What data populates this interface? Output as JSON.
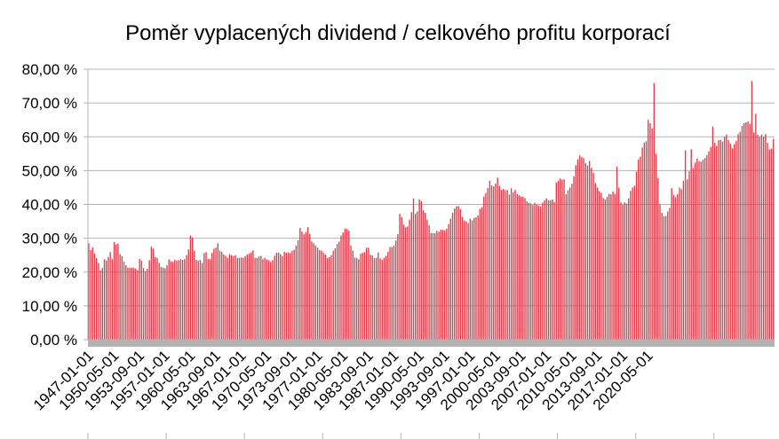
{
  "chart_data": {
    "type": "bar",
    "title": "Poměr vyplacených dividend / celkového profitu korporací",
    "xlabel": "",
    "ylabel": "",
    "ylim": [
      0,
      80
    ],
    "y_ticks": [
      "0,00 %",
      "10,00 %",
      "20,00 %",
      "30,00 %",
      "40,00 %",
      "50,00 %",
      "60,00 %",
      "70,00 %",
      "80,00 %"
    ],
    "y_tick_values": [
      0,
      10,
      20,
      30,
      40,
      50,
      60,
      70,
      80
    ],
    "x_ticks": [
      "1947-01-01",
      "1950-05-01",
      "1953-09-01",
      "1957-01-01",
      "1960-05-01",
      "1963-09-01",
      "1967-01-01",
      "1970-05-01",
      "1973-09-01",
      "1977-01-01",
      "1980-05-01",
      "1983-09-01",
      "1987-01-01",
      "1990-05-01",
      "1993-09-01",
      "1997-01-01",
      "2000-05-01",
      "2003-09-01",
      "2007-01-01",
      "2010-05-01",
      "2013-09-01",
      "2017-01-01",
      "2020-05-01"
    ],
    "grid": true,
    "legend": "none",
    "bar_color": "#e03c4a",
    "floor_color": "#b3b3b3",
    "x_start": "1947-01-01",
    "x_interval": "quarterly",
    "series": [
      {
        "values": [
          28.5,
          26.5,
          27.3,
          25.5,
          24.1,
          22.6,
          20.5,
          21.2,
          23.8,
          23.4,
          24.4,
          25.9,
          23.8,
          28.9,
          28.2,
          28.4,
          25.3,
          24.7,
          23.1,
          22.0,
          21.3,
          21.3,
          21.3,
          21.2,
          21.0,
          20.5,
          23.9,
          23.4,
          21.2,
          20.3,
          21.0,
          23.5,
          27.5,
          26.9,
          24.4,
          24.2,
          22.7,
          21.5,
          21.3,
          21.1,
          22.0,
          23.7,
          23.2,
          23.0,
          23.6,
          23.4,
          23.5,
          23.8,
          23.6,
          23.8,
          25.0,
          26.7,
          30.8,
          30.2,
          26.3,
          23.6,
          23.3,
          23.6,
          22.7,
          25.6,
          25.9,
          23.9,
          23.8,
          25.7,
          26.9,
          27.2,
          28.5,
          26.3,
          26.0,
          25.2,
          24.8,
          24.2,
          25.3,
          25.0,
          24.7,
          25.0,
          24.2,
          24.2,
          24.3,
          24.2,
          24.7,
          25.2,
          25.5,
          25.8,
          26.4,
          24.2,
          24.2,
          24.6,
          24.8,
          23.8,
          24.2,
          23.7,
          23.5,
          23.0,
          23.5,
          24.8,
          25.7,
          25.7,
          25.3,
          24.7,
          26.0,
          25.7,
          25.8,
          25.6,
          26.3,
          26.6,
          27.8,
          29.4,
          33.0,
          32.0,
          31.2,
          31.8,
          33.3,
          31.3,
          29.0,
          28.5,
          27.8,
          27.2,
          26.5,
          26.3,
          25.7,
          25.2,
          24.1,
          24.4,
          25.0,
          26.3,
          27.0,
          28.3,
          29.0,
          30.8,
          31.7,
          32.8,
          32.8,
          32.2,
          27.8,
          26.3,
          24.3,
          24.2,
          23.8,
          25.4,
          25.7,
          25.9,
          27.2,
          27.2,
          25.2,
          24.9,
          24.1,
          24.2,
          25.8,
          24.0,
          23.7,
          24.2,
          24.8,
          26.0,
          27.4,
          27.4,
          27.8,
          29.3,
          31.2,
          37.2,
          36.2,
          34.0,
          33.2,
          33.5,
          35.5,
          37.7,
          41.8,
          37.2,
          37.9,
          41.5,
          41.0,
          38.3,
          37.5,
          35.5,
          33.8,
          31.5,
          31.5,
          31.5,
          32.2,
          31.9,
          32.5,
          32.5,
          32.3,
          32.8,
          34.2,
          35.8,
          37.5,
          38.8,
          39.5,
          39.5,
          38.6,
          36.3,
          35.2,
          35.0,
          34.5,
          35.8,
          35.3,
          36.0,
          36.2,
          36.8,
          38.7,
          39.2,
          42.3,
          43.4,
          44.9,
          47.0,
          45.6,
          45.3,
          46.2,
          47.9,
          45.5,
          44.3,
          44.6,
          44.2,
          44.3,
          42.9,
          44.8,
          43.6,
          44.3,
          43.1,
          42.7,
          42.3,
          42.3,
          41.9,
          40.9,
          40.5,
          40.3,
          39.8,
          40.5,
          40.0,
          39.7,
          39.4,
          40.5,
          41.2,
          41.8,
          41.2,
          41.2,
          41.5,
          40.7,
          46.5,
          47.0,
          47.7,
          47.3,
          47.5,
          43.0,
          44.2,
          45.0,
          46.1,
          48.3,
          51.6,
          53.3,
          54.5,
          54.0,
          53.7,
          52.2,
          51.5,
          52.9,
          50.8,
          49.3,
          46.3,
          45.0,
          43.9,
          43.4,
          41.9,
          41.5,
          42.3,
          43.1,
          43.0,
          43.8,
          43.1,
          51.2,
          45.0,
          40.6,
          39.9,
          40.6,
          40.3,
          41.8,
          44.0,
          45.0,
          45.5,
          49.7,
          53.3,
          54.1,
          56.8,
          58.3,
          58.7,
          65.0,
          64.0,
          62.5,
          75.9,
          55.0,
          47.8,
          40.0,
          37.5,
          36.5,
          36.6,
          37.9,
          39.0,
          44.8,
          42.8,
          42.1,
          43.1,
          45.0,
          44.5,
          47.0,
          56.0,
          47.4,
          49.8,
          56.3,
          50.7,
          52.4,
          53.6,
          52.8,
          52.6,
          53.2,
          53.7,
          54.6,
          55.7,
          57.0,
          63.0,
          58.2,
          57.3,
          59.0,
          59.1,
          58.6,
          60.0,
          60.7,
          59.0,
          58.0,
          56.6,
          57.8,
          58.8,
          60.8,
          61.5,
          63.2,
          64.0,
          64.3,
          64.5,
          63.8,
          76.5,
          61.3,
          66.8,
          60.6,
          60.0,
          60.7,
          60.0,
          60.8,
          58.2,
          56.3,
          56.5,
          59.4
        ]
      }
    ]
  }
}
